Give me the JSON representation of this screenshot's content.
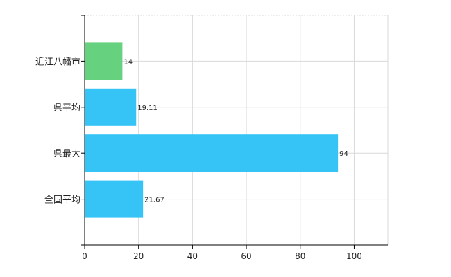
{
  "chart_data": {
    "type": "bar",
    "orientation": "horizontal",
    "categories": [
      "近江八幡市",
      "県平均",
      "県最大",
      "全国平均"
    ],
    "values": [
      14,
      19.11,
      94,
      21.67
    ],
    "value_labels": [
      "14",
      "19.11",
      "94",
      "21.67"
    ],
    "bar_colors": [
      "#66d17f",
      "#36c3f5",
      "#36c3f5",
      "#36c3f5"
    ],
    "xlim": [
      0,
      112.5
    ],
    "x_ticks": [
      0,
      20,
      40,
      60,
      80,
      100
    ],
    "x_tick_labels": [
      "0",
      "20",
      "40",
      "60",
      "80",
      "100"
    ],
    "title": "",
    "xlabel": "",
    "ylabel": "",
    "grid": true
  }
}
